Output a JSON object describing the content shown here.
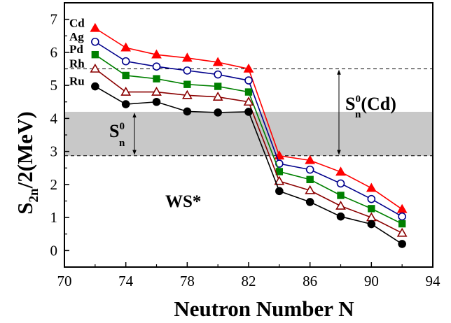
{
  "chart_data": {
    "type": "line",
    "title": "",
    "xlabel": "Neutron Number N",
    "ylabel_main": "S",
    "ylabel_sub": "2n",
    "ylabel_rest": "/2(MeV)",
    "xlim": [
      70,
      94
    ],
    "ylim": [
      -0.5,
      7.5
    ],
    "xticks": [
      70,
      74,
      78,
      82,
      86,
      90,
      94
    ],
    "yticks": [
      0,
      1,
      2,
      3,
      4,
      5,
      6,
      7
    ],
    "x": [
      72,
      74,
      76,
      78,
      80,
      82,
      84,
      86,
      88,
      90,
      92
    ],
    "series": [
      {
        "name": "Cd",
        "color": "#ff0000",
        "marker": "triangle-filled",
        "values": [
          6.73,
          6.14,
          5.93,
          5.83,
          5.7,
          5.5,
          2.87,
          2.73,
          2.38,
          1.89,
          1.25
        ]
      },
      {
        "name": "Ag",
        "color": "#00008b",
        "marker": "circle-open",
        "values": [
          6.32,
          5.73,
          5.57,
          5.45,
          5.33,
          5.15,
          2.63,
          2.45,
          2.03,
          1.56,
          1.03
        ]
      },
      {
        "name": "Pd",
        "color": "#008000",
        "marker": "square-filled",
        "values": [
          5.93,
          5.3,
          5.2,
          5.03,
          4.97,
          4.8,
          2.39,
          2.15,
          1.67,
          1.27,
          0.81
        ]
      },
      {
        "name": "Rh",
        "color": "#8b0000",
        "marker": "triangle-open",
        "values": [
          5.5,
          4.8,
          4.8,
          4.7,
          4.65,
          4.5,
          2.1,
          1.82,
          1.35,
          1.0,
          0.53
        ]
      },
      {
        "name": "Ru",
        "color": "#000000",
        "marker": "circle-filled",
        "values": [
          4.97,
          4.43,
          4.5,
          4.21,
          4.18,
          4.2,
          1.8,
          1.47,
          1.03,
          0.8,
          0.2
        ]
      }
    ],
    "reference_lines": {
      "upper": 5.5,
      "lower": 2.87
    },
    "shaded_band": [
      2.87,
      4.2
    ],
    "annotations": {
      "band_label_main": "S",
      "band_label_sup": "0",
      "band_label_sub": "n",
      "cd_label_main": "S",
      "cd_label_sup": "0",
      "cd_label_sub": "n",
      "cd_label_rest": "(Cd)",
      "model_label": "WS*"
    },
    "grid": false,
    "legend": "labels at left of curves"
  }
}
